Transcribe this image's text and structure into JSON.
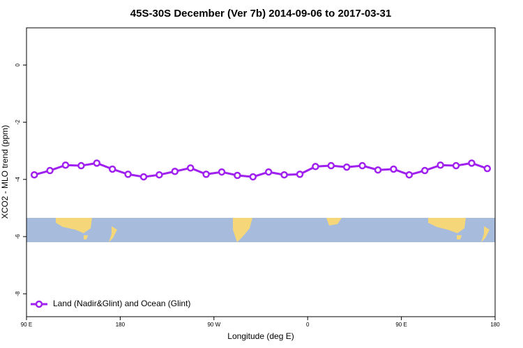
{
  "chart_data": {
    "type": "line",
    "title": "45S-30S December (Ver 7b)   2014-09-06 to 2017-03-31",
    "x_label": "Longitude (deg E)",
    "y_label": "XCO2 - MLO trend (ppm)",
    "x": [
      97.5,
      112.5,
      127.5,
      142.5,
      157.5,
      172.5,
      187.5,
      202.5,
      217.5,
      232.5,
      247.5,
      262.5,
      277.5,
      292.5,
      307.5,
      322.5,
      337.5,
      352.5,
      367.5,
      382.5,
      397.5,
      412.5,
      427.5,
      442.5,
      457.5,
      472.5,
      487.5,
      502.5,
      517.5,
      532.5
    ],
    "series": [
      {
        "name": "Land (Nadir&Glint) and Ocean (Glint)",
        "color": "#a020f0",
        "values": [
          -3.84,
          -3.69,
          -3.5,
          -3.52,
          -3.43,
          -3.64,
          -3.82,
          -3.91,
          -3.84,
          -3.72,
          -3.6,
          -3.82,
          -3.74,
          -3.86,
          -3.91,
          -3.74,
          -3.84,
          -3.82,
          -3.55,
          -3.52,
          -3.57,
          -3.52,
          -3.67,
          -3.64,
          -3.84,
          -3.69,
          -3.5,
          -3.52,
          -3.43,
          -3.62
        ]
      }
    ],
    "xlim": [
      90,
      540
    ],
    "xticks": [
      {
        "value": 90,
        "label": "90 E"
      },
      {
        "value": 180,
        "label": "180"
      },
      {
        "value": 270,
        "label": "90 W"
      },
      {
        "value": 360,
        "label": "0"
      },
      {
        "value": 450,
        "label": "90 E"
      },
      {
        "value": 540,
        "label": "180"
      }
    ],
    "ylim": [
      -8.8,
      1.3
    ],
    "yticks": [
      0,
      -2,
      -4,
      -6,
      -8
    ],
    "legend": "bottom-left"
  }
}
